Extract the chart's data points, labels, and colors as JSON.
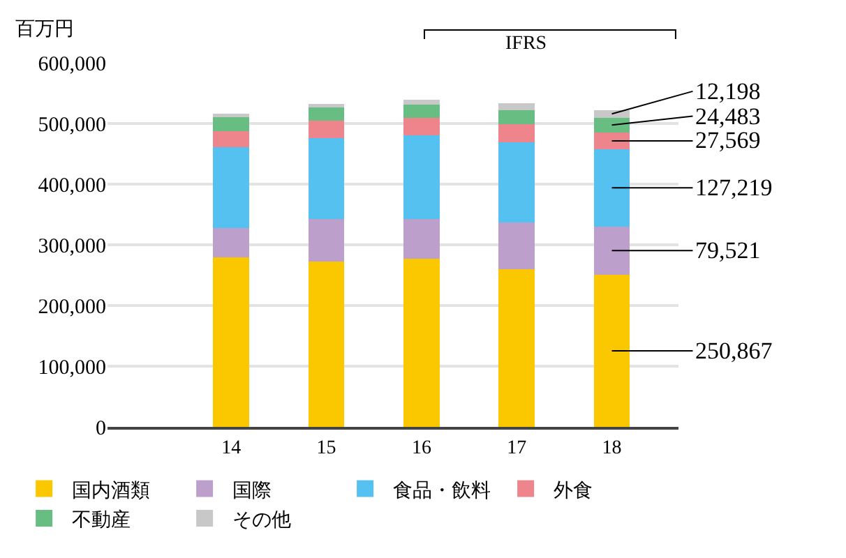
{
  "chart_data": {
    "type": "bar",
    "stacked": true,
    "ylabel": "百万円",
    "categories": [
      "14",
      "15",
      "16",
      "17",
      "18"
    ],
    "series": [
      {
        "name": "国内酒類",
        "color": "#fbc800",
        "values": [
          279000,
          272000,
          277000,
          260000,
          250867
        ],
        "value_labels": [
          null,
          null,
          null,
          null,
          "250,867"
        ]
      },
      {
        "name": "国際",
        "color": "#bca0cb",
        "values": [
          49000,
          71000,
          66000,
          77000,
          79521
        ],
        "value_labels": [
          null,
          null,
          null,
          null,
          "79,521"
        ]
      },
      {
        "name": "食品・飲料",
        "color": "#55c1f0",
        "values": [
          133000,
          133000,
          137000,
          132000,
          127219
        ],
        "value_labels": [
          null,
          null,
          null,
          null,
          "127,219"
        ]
      },
      {
        "name": "外食",
        "color": "#ef858c",
        "values": [
          26000,
          29000,
          29000,
          30000,
          27569
        ],
        "value_labels": [
          null,
          null,
          null,
          null,
          "27,569"
        ]
      },
      {
        "name": "不動産",
        "color": "#68be82",
        "values": [
          23000,
          21000,
          22000,
          23000,
          24483
        ],
        "value_labels": [
          null,
          null,
          null,
          null,
          "24,483"
        ]
      },
      {
        "name": "その他",
        "color": "#c8c8c8",
        "values": [
          6000,
          6000,
          8000,
          11000,
          12198
        ],
        "value_labels": [
          null,
          null,
          null,
          null,
          "12,198"
        ]
      }
    ],
    "ylim": [
      0,
      600000
    ],
    "yticks": [
      {
        "value": 0,
        "label": "0"
      },
      {
        "value": 100000,
        "label": "100,000"
      },
      {
        "value": 200000,
        "label": "200,000"
      },
      {
        "value": 300000,
        "label": "300,000"
      },
      {
        "value": 400000,
        "label": "400,000"
      },
      {
        "value": 500000,
        "label": "500,000"
      },
      {
        "value": 600000,
        "label": "600,000"
      }
    ],
    "grid": "y",
    "legend": "bottom",
    "annotations": [
      "IFRS"
    ]
  }
}
